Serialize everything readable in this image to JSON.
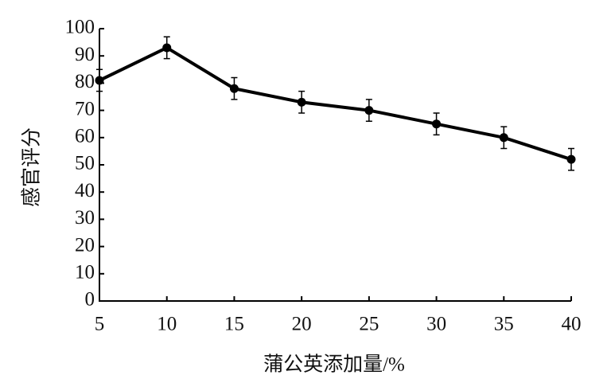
{
  "chart_data": {
    "type": "line",
    "xlabel": "蒲公英添加量/%",
    "ylabel": "感官评分",
    "x": [
      5,
      10,
      15,
      20,
      25,
      30,
      35,
      40
    ],
    "series": [
      {
        "color": "#000000",
        "values": [
          81,
          93,
          78,
          73,
          70,
          65,
          60,
          52
        ],
        "errors": [
          4,
          4,
          4,
          4,
          4,
          4,
          4,
          4
        ]
      }
    ],
    "xlim": [
      5,
      40
    ],
    "xticks": [
      5,
      10,
      15,
      20,
      25,
      30,
      35,
      40
    ],
    "ylim": [
      0,
      100
    ],
    "yticks": [
      0,
      10,
      20,
      30,
      40,
      50,
      60,
      70,
      80,
      90,
      100
    ],
    "grid": false
  }
}
